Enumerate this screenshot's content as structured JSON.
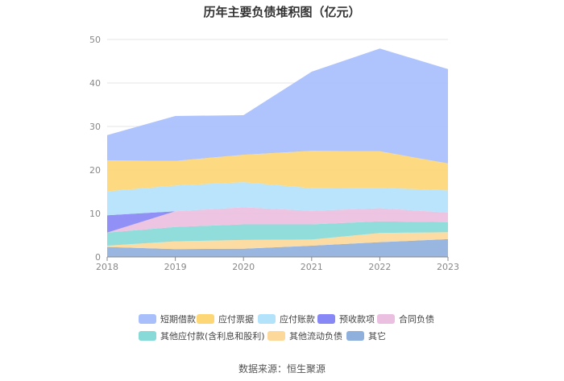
{
  "chart_data": {
    "type": "area",
    "stacked": true,
    "title": "历年主要负债堆积图（亿元）",
    "x": [
      "2018",
      "2019",
      "2020",
      "2021",
      "2022",
      "2023"
    ],
    "ylim": [
      0,
      50
    ],
    "yticks": [
      0,
      10,
      20,
      30,
      40,
      50
    ],
    "grid": true,
    "legend_position": "bottom",
    "series": [
      {
        "name": "其它",
        "color": "#8fb0dc",
        "values": [
          2.3,
          1.8,
          1.9,
          2.6,
          3.4,
          4.1
        ]
      },
      {
        "name": "其他流动负债",
        "color": "#fcd99a",
        "values": [
          0.3,
          1.8,
          2.0,
          1.4,
          2.1,
          1.6
        ]
      },
      {
        "name": "其他应付款(含利息和股利)",
        "color": "#88dad8",
        "values": [
          3.0,
          3.3,
          3.6,
          3.5,
          2.7,
          2.3
        ]
      },
      {
        "name": "合同负债",
        "color": "#ebbfe0",
        "values": [
          0,
          3.6,
          3.9,
          3.1,
          3.0,
          2.2
        ]
      },
      {
        "name": "预收款项",
        "color": "#8787f5",
        "values": [
          4.0,
          0,
          0,
          0,
          0,
          0
        ]
      },
      {
        "name": "应付账款",
        "color": "#b3e2fb",
        "values": [
          5.5,
          5.9,
          5.8,
          5.2,
          4.7,
          5.1
        ]
      },
      {
        "name": "应付票据",
        "color": "#fdd776",
        "values": [
          7.1,
          5.7,
          6.3,
          8.6,
          8.4,
          6.2
        ]
      },
      {
        "name": "短期借款",
        "color": "#a8bffc",
        "values": [
          5.8,
          10.3,
          9.1,
          18.2,
          23.6,
          21.7
        ]
      }
    ]
  },
  "legend_order": [
    "短期借款",
    "应付票据",
    "应付账款",
    "预收款项",
    "合同负债",
    "其他应付款(含利息和股利)",
    "其他流动负债",
    "其它"
  ],
  "source": "数据来源：恒生聚源"
}
